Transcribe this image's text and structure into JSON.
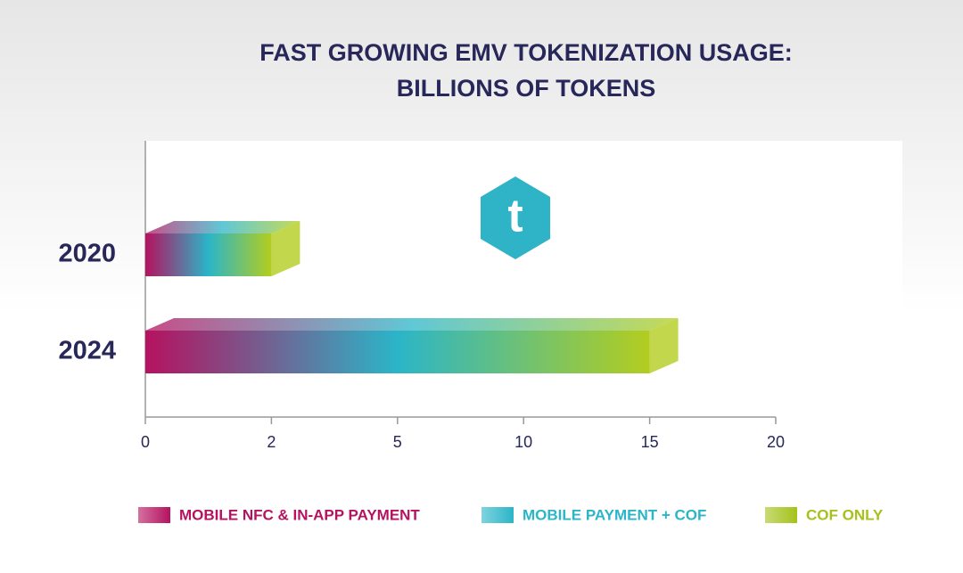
{
  "chart_data": {
    "type": "bar3d",
    "orientation": "horizontal",
    "title": [
      "FAST GROWING EMV TOKENIZATION USAGE:",
      "BILLIONS OF TOKENS"
    ],
    "logo": "t",
    "categories": [
      "2020",
      "2024"
    ],
    "values": [
      2,
      15
    ],
    "xlim": [
      0,
      20
    ],
    "xticks": [
      0,
      2,
      5,
      10,
      15,
      20
    ],
    "gradient": [
      "#b5125f",
      "#2bb5c8",
      "#b3cd1f"
    ],
    "legend": [
      {
        "label": "MOBILE NFC & IN-APP PAYMENT",
        "color": "#b5125f"
      },
      {
        "label": "MOBILE PAYMENT + COF",
        "color": "#2bb5c8"
      },
      {
        "label": "COF ONLY",
        "color": "#a4c21a"
      }
    ]
  }
}
